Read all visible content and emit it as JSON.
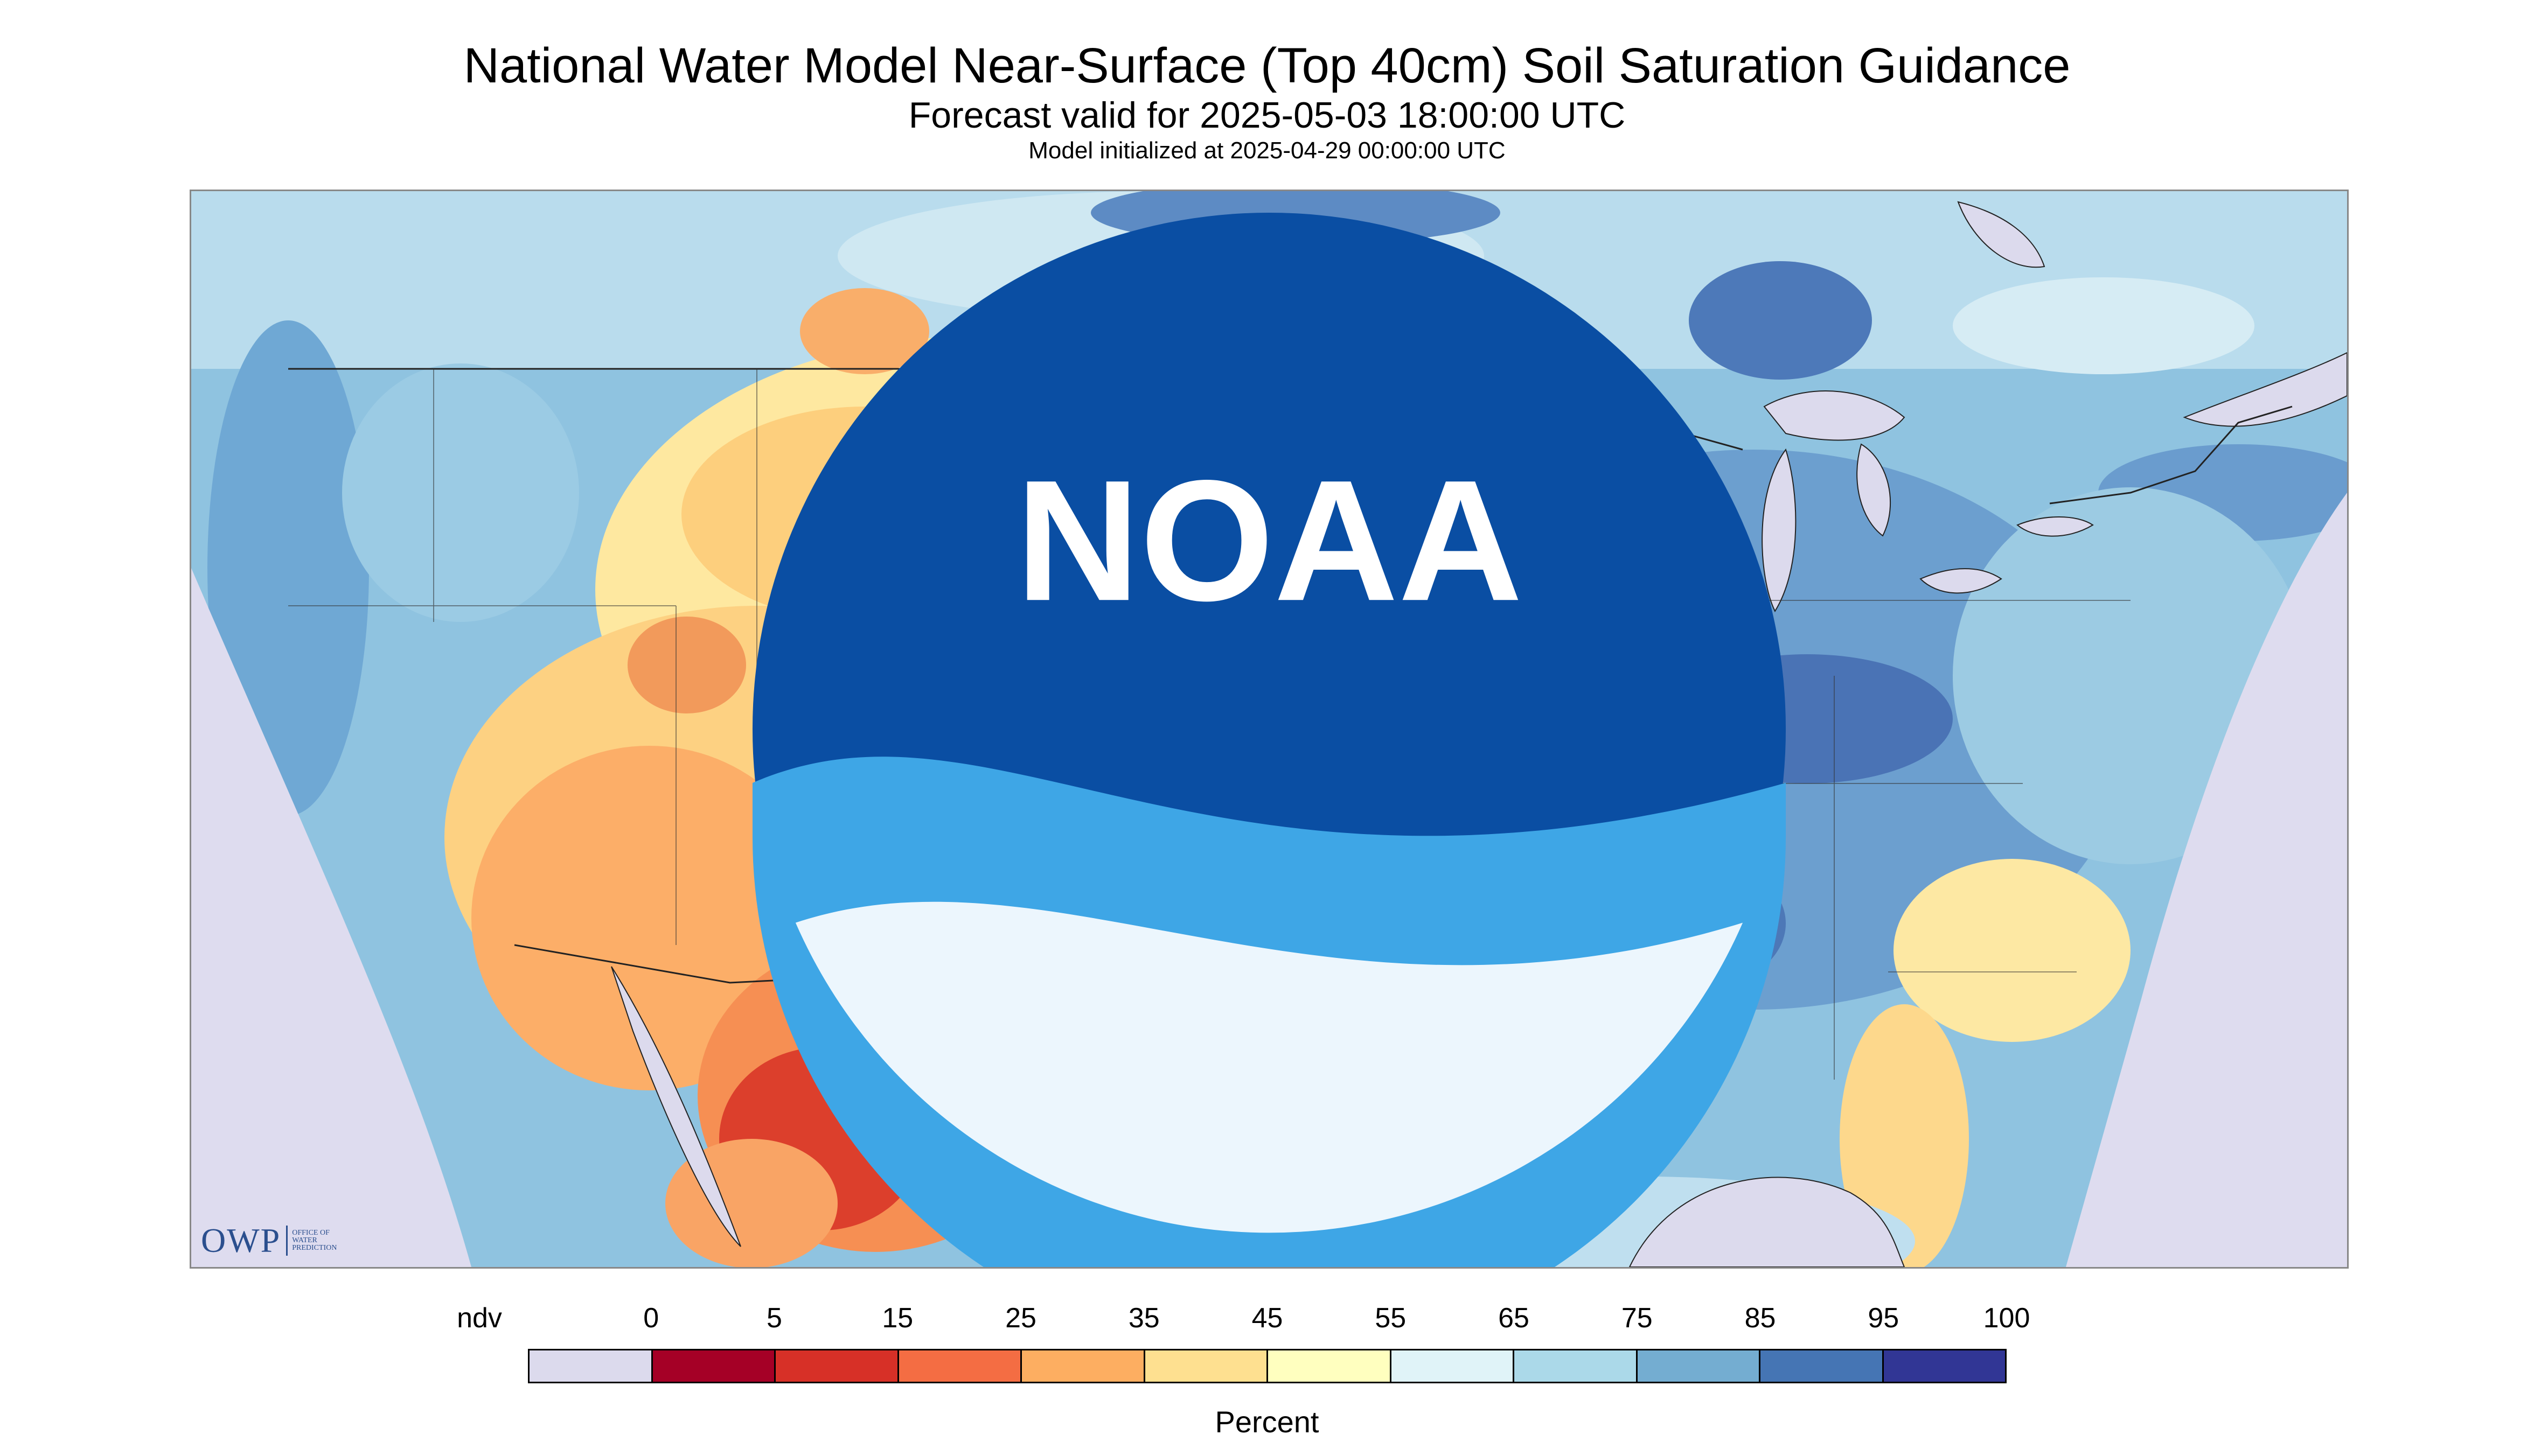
{
  "title": "National Water Model Near-Surface (Top 40cm) Soil Saturation Guidance",
  "subtitle": "Forecast valid for 2025-05-03 18:00:00 UTC",
  "init_text": "Model initialized at 2025-04-29 00:00:00 UTC",
  "legend": {
    "ticks": [
      "ndv",
      "0",
      "5",
      "15",
      "25",
      "35",
      "45",
      "55",
      "65",
      "75",
      "85",
      "95",
      "100"
    ],
    "colors": [
      "#dcdaed",
      "#a50026",
      "#d73027",
      "#f46d43",
      "#fdae61",
      "#fee090",
      "#ffffbf",
      "#e0f3f8",
      "#abd9e9",
      "#74add1",
      "#4575b4",
      "#313695"
    ],
    "label": "Percent"
  },
  "logos": {
    "owp_mark": "OWP",
    "owp_lines": [
      "OFFICE OF",
      "WATER",
      "PREDICTION"
    ],
    "noaa": "NOAA",
    "noaa_icon": "noaa-logo-icon"
  },
  "map": {
    "extent": "CONUS",
    "background_nodata": "#dedcef",
    "water": "#dcdaed"
  }
}
